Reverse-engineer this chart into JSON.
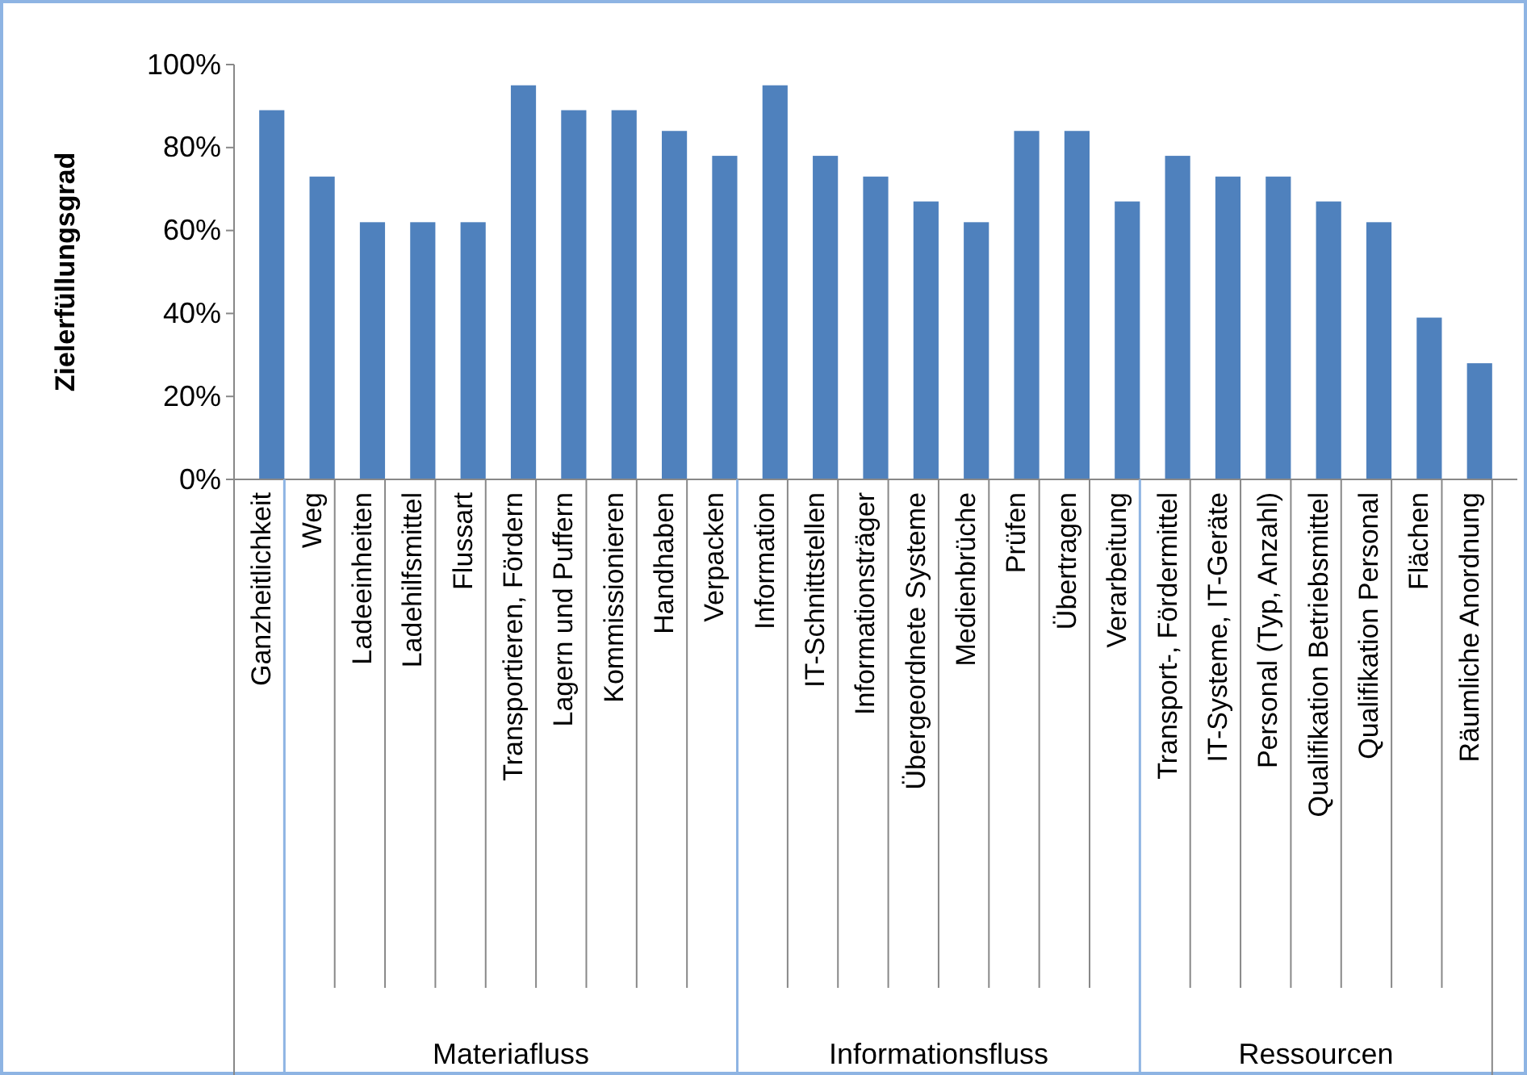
{
  "chart_data": {
    "type": "bar",
    "ylabel": "Zielerfüllungsgrad",
    "categories": [
      "Ganzheitlichkeit",
      "Weg",
      "Ladeeinheiten",
      "Ladehilfsmittel",
      "Flussart",
      "Transportieren, Fördern",
      "Lagern und Puffern",
      "Kommissionieren",
      "Handhaben",
      "Verpacken",
      "Information",
      "IT-Schnittstellen",
      "Informationsträger",
      "Übergeordnete Systeme",
      "Medienbrüche",
      "Prüfen",
      "Übertragen",
      "Verarbeitung",
      "Transport-, Fördermittel",
      "IT-Systeme, IT-Geräte",
      "Personal (Typ, Anzahl)",
      "Qualifikation Betriebsmittel",
      "Qualifikation Personal",
      "Flächen",
      "Räumliche Anordnung"
    ],
    "values": [
      89,
      73,
      62,
      62,
      62,
      95,
      89,
      89,
      84,
      78,
      95,
      78,
      73,
      67,
      62,
      84,
      84,
      67,
      78,
      73,
      73,
      67,
      62,
      39,
      28
    ],
    "color": "#4f81bd",
    "ylim": [
      0,
      100
    ],
    "yticks": [
      {
        "value": 0,
        "label": "0%"
      },
      {
        "value": 20,
        "label": "20%"
      },
      {
        "value": 40,
        "label": "40%"
      },
      {
        "value": 60,
        "label": "60%"
      },
      {
        "value": 80,
        "label": "80%"
      },
      {
        "value": 100,
        "label": "100%"
      }
    ],
    "annotations": [
      "Materiafluss",
      "Informationsfluss",
      "Ressourcen"
    ]
  }
}
